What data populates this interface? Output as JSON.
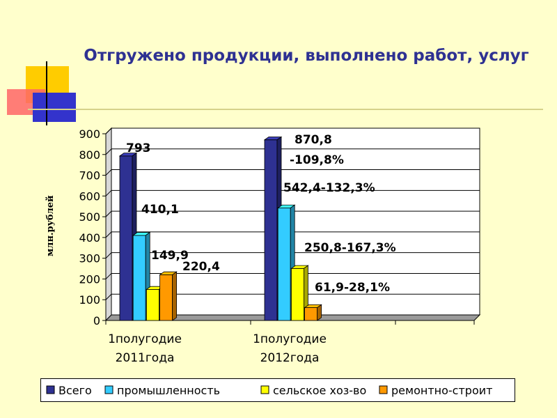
{
  "title": "Отгружено продукции, выполнено работ, услуг",
  "chart_data": {
    "type": "bar",
    "title": "Отгружено продукции, выполнено работ, услуг",
    "ylabel": "млн.рублей",
    "xlabel": "",
    "ylim": [
      0,
      900
    ],
    "yticks": [
      0,
      100,
      200,
      300,
      400,
      500,
      600,
      700,
      800,
      900
    ],
    "categories": [
      [
        "1полугодие",
        "2011года"
      ],
      [
        "1полугодие",
        "2012года"
      ]
    ],
    "legend_position": "bottom",
    "series": [
      {
        "name": "Всего",
        "color": "#2e3192",
        "values": [
          793,
          870.8
        ],
        "labels": [
          "793",
          "870,8"
        ]
      },
      {
        "name": "промышленность",
        "color": "#33ccff",
        "values": [
          410.1,
          542.4
        ],
        "labels": [
          "410,1",
          "542,4-132,3%"
        ]
      },
      {
        "name": "сельское хоз-во",
        "color": "#ffff00",
        "values": [
          149.9,
          250.8
        ],
        "labels": [
          "149,9",
          "250,8-167,3%"
        ]
      },
      {
        "name": "ремонтно-строит",
        "color": "#ff9900",
        "values": [
          220.4,
          61.9
        ],
        "labels": [
          "220,4",
          "61,9-28,1%"
        ]
      }
    ],
    "annotations": [
      "-109,8%"
    ]
  }
}
